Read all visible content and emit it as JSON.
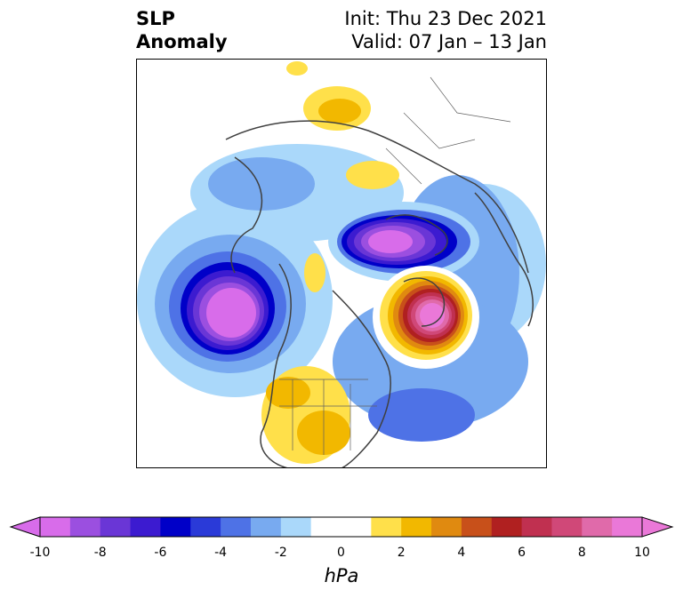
{
  "title": {
    "left_line1": "SLP",
    "left_line2": "Anomaly",
    "right_line1": "Init: Thu 23 Dec 2021",
    "right_line2": "Valid: 07 Jan – 13 Jan"
  },
  "map": {
    "projection": "polar stereographic (Northern Hemisphere)",
    "anomaly_centers": [
      {
        "label": "negative",
        "region": "North Pacific / Gulf of Alaska",
        "min_hPa": -10
      },
      {
        "label": "negative",
        "region": "Barents / Kara Sea",
        "min_hPa": -10
      },
      {
        "label": "positive",
        "region": "Greenland / Baffin Bay",
        "max_hPa": 10
      },
      {
        "label": "positive",
        "region": "Western United States",
        "max_hPa": 4
      },
      {
        "label": "negative",
        "region": "North Atlantic",
        "min_hPa": -4
      }
    ]
  },
  "colorbar": {
    "units": "hPa",
    "ticks": [
      "-10",
      "-8",
      "-6",
      "-4",
      "-2",
      "0",
      "2",
      "4",
      "6",
      "8",
      "10"
    ],
    "levels": [
      -10,
      -9,
      -8,
      -7,
      -6,
      -5,
      -4,
      -3,
      -2,
      -1,
      1,
      2,
      3,
      4,
      5,
      6,
      7,
      8,
      9,
      10
    ],
    "colors": [
      "#d86cea",
      "#9b4fe0",
      "#6a36d6",
      "#3c1bd0",
      "#0000c8",
      "#2a3ad8",
      "#4e72e6",
      "#78aaf0",
      "#aad8fa",
      "#ffffff",
      "#ffffff",
      "#ffe04a",
      "#f2b800",
      "#e08a10",
      "#c8501a",
      "#b02020",
      "#c03050",
      "#d04878",
      "#e06aaa",
      "#ea78d8"
    ]
  }
}
